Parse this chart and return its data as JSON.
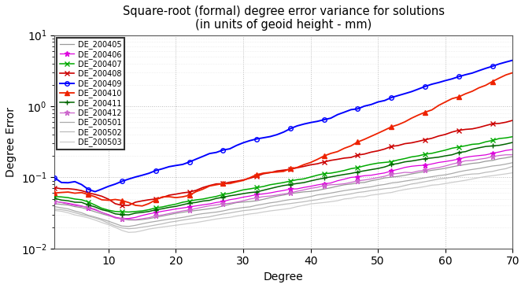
{
  "title_line1": "Square-root (formal) degree error variance for solutions",
  "title_line2": "(in units of geoid height - mm)",
  "xlabel": "Degree",
  "ylabel": "Degree Error",
  "xlim": [
    2,
    70
  ],
  "series": {
    "DE_200405": {
      "color": "#999999",
      "marker": null,
      "lw": 0.9,
      "zorder": 2
    },
    "DE_200406": {
      "color": "#dd00dd",
      "marker": "*",
      "lw": 0.9,
      "zorder": 3
    },
    "DE_200407": {
      "color": "#00aa00",
      "marker": "x",
      "lw": 1.1,
      "zorder": 4
    },
    "DE_200408": {
      "color": "#cc0000",
      "marker": "x",
      "lw": 1.2,
      "zorder": 5
    },
    "DE_200409": {
      "color": "#0000ff",
      "marker": "o",
      "lw": 1.4,
      "zorder": 6
    },
    "DE_200410": {
      "color": "#ee2200",
      "marker": "^",
      "lw": 1.3,
      "zorder": 7
    },
    "DE_200411": {
      "color": "#006600",
      "marker": "+",
      "lw": 1.1,
      "zorder": 4
    },
    "DE_200412": {
      "color": "#cc66cc",
      "marker": "*",
      "lw": 0.9,
      "zorder": 3
    },
    "DE_200501": {
      "color": "#aaaaaa",
      "marker": null,
      "lw": 0.9,
      "zorder": 2
    },
    "DE_200502": {
      "color": "#bbbbbb",
      "marker": null,
      "lw": 0.9,
      "zorder": 2
    },
    "DE_200503": {
      "color": "#cccccc",
      "marker": null,
      "lw": 0.9,
      "zorder": 2
    }
  },
  "background_color": "#ffffff",
  "grid_color": "#bbbbbb"
}
